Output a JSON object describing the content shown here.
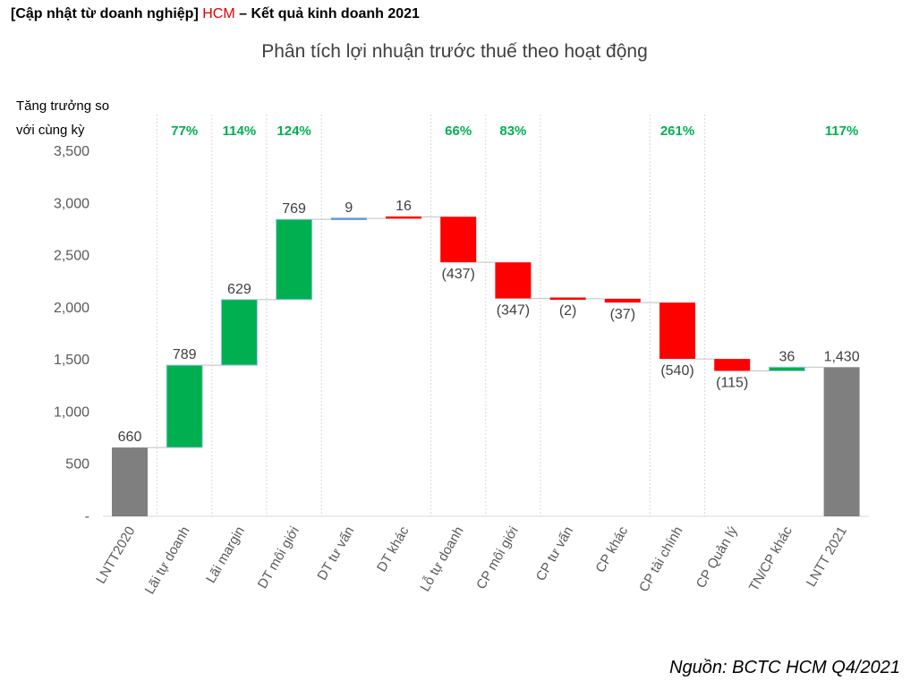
{
  "header": {
    "prefix": "[Cập nhật từ doanh nghiệp]",
    "ticker": "HCM",
    "suffix": "– Kết quả kinh doanh 2021"
  },
  "source_note": "Nguồn: BCTC HCM Q4/2021",
  "colors": {
    "ticker": "#e00000",
    "increase": "#00b050",
    "increase_outline": "#9dc3e6",
    "decrease": "#ff0000",
    "total": "#7f7f7f",
    "small_increase": "#5b9bd5",
    "growth_text": "#00b050",
    "connector": "#bfbfbf",
    "axis": "#d9d9d9",
    "separator": "#d9d9d9"
  },
  "chart_data": {
    "type": "bar",
    "subtype": "waterfall",
    "title": "Phân tích lợi nhuận trước thuế theo hoạt động",
    "growth_caption": [
      "Tăng trưởng so",
      "với cùng kỳ"
    ],
    "categories": [
      "LNTT2020",
      "Lãi tự doanh",
      "Lãi margin",
      "DT môi giới",
      "DT tư vấn",
      "DT khác",
      "Lỗ tự doanh",
      "CP môi giới",
      "CP tư vấn",
      "CP khác",
      "CP tài chính",
      "CP Quản lý",
      "TN/CP khác",
      "LNTT 2021"
    ],
    "values": [
      660,
      789,
      629,
      769,
      9,
      16,
      -437,
      -347,
      -2,
      -37,
      -540,
      -115,
      36,
      1430
    ],
    "totals": [
      0,
      13
    ],
    "data_labels": [
      "660",
      "789",
      "629",
      "769",
      "9",
      "16",
      "(437)",
      "(347)",
      "(2)",
      "(37)",
      "(540)",
      "(115)",
      "36",
      "1,430"
    ],
    "growth_yoy": [
      null,
      "77%",
      "114%",
      "124%",
      null,
      null,
      "66%",
      "83%",
      null,
      null,
      "261%",
      null,
      null,
      "117%"
    ],
    "bar_colors": [
      "#7f7f7f",
      "#00b050",
      "#00b050",
      "#00b050",
      "#5b9bd5",
      "#ff0000",
      "#ff0000",
      "#ff0000",
      "#ff0000",
      "#ff0000",
      "#ff0000",
      "#ff0000",
      "#00b050",
      "#7f7f7f"
    ],
    "y_ticks": [
      0,
      500,
      1000,
      1500,
      2000,
      2500,
      3000,
      3500
    ],
    "y_tick_labels": [
      "-",
      "500",
      "1,000",
      "1,500",
      "2,000",
      "2,500",
      "3,000",
      "3,500"
    ],
    "ylim": [
      0,
      3500
    ],
    "grid": false
  }
}
